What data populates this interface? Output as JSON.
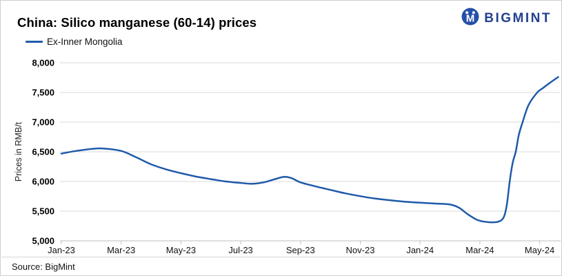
{
  "header": {
    "title": "China: Silico manganese (60-14) prices",
    "legend_label": "Ex-Inner Mongolia"
  },
  "logo": {
    "text": "BIGMINT",
    "icon": "bigmint-monkey-icon",
    "icon_color": "#2450A8",
    "text_color": "#24408E"
  },
  "footer": {
    "source": "Source: BigMint"
  },
  "colors": {
    "line": "#1F5AA9",
    "gridline": "#D9D9D9",
    "axis": "#BFBFBF",
    "background": "#FFFFFF"
  },
  "chart_data": {
    "type": "line",
    "title": "China: Silico manganese (60-14) prices",
    "xlabel": "",
    "ylabel": "Prices in RMB/t",
    "ylim": [
      5000,
      8000
    ],
    "y_tick_step": 500,
    "y_ticks": [
      8000,
      7500,
      7000,
      6500,
      6000,
      5500,
      5000
    ],
    "y_tick_labels": [
      "8,000",
      "7,500",
      "7,000",
      "6,500",
      "6,000",
      "5,500",
      "5,000"
    ],
    "x_unit": "months since Jan-2023",
    "x_ticks": [
      {
        "label": "Jan-23",
        "m": 0
      },
      {
        "label": "Mar-23",
        "m": 2
      },
      {
        "label": "May-23",
        "m": 4
      },
      {
        "label": "Jul-23",
        "m": 6
      },
      {
        "label": "Sep-23",
        "m": 8
      },
      {
        "label": "Nov-23",
        "m": 10
      },
      {
        "label": "Jan-24",
        "m": 12
      },
      {
        "label": "Mar-24",
        "m": 14
      },
      {
        "label": "May-24",
        "m": 16
      }
    ],
    "grid": "horizontal",
    "legend_position": "top-left",
    "series": [
      {
        "name": "Ex-Inner Mongolia",
        "color": "#1F5AA9",
        "points": [
          [
            0,
            6470
          ],
          [
            0.5,
            6515
          ],
          [
            1,
            6548
          ],
          [
            1.4,
            6556
          ],
          [
            2,
            6515
          ],
          [
            2.5,
            6408
          ],
          [
            3,
            6290
          ],
          [
            3.5,
            6205
          ],
          [
            4,
            6140
          ],
          [
            4.5,
            6083
          ],
          [
            5,
            6040
          ],
          [
            5.5,
            6000
          ],
          [
            6,
            5975
          ],
          [
            6.4,
            5962
          ],
          [
            6.8,
            5988
          ],
          [
            7.1,
            6032
          ],
          [
            7.45,
            6078
          ],
          [
            7.7,
            6056
          ],
          [
            8,
            5985
          ],
          [
            8.5,
            5918
          ],
          [
            9,
            5858
          ],
          [
            9.5,
            5800
          ],
          [
            10,
            5752
          ],
          [
            10.5,
            5712
          ],
          [
            11,
            5682
          ],
          [
            11.5,
            5658
          ],
          [
            12,
            5642
          ],
          [
            12.5,
            5628
          ],
          [
            13,
            5612
          ],
          [
            13.3,
            5558
          ],
          [
            13.6,
            5445
          ],
          [
            13.9,
            5355
          ],
          [
            14.15,
            5322
          ],
          [
            14.45,
            5312
          ],
          [
            14.65,
            5328
          ],
          [
            14.8,
            5400
          ],
          [
            14.9,
            5600
          ],
          [
            15.0,
            6010
          ],
          [
            15.1,
            6320
          ],
          [
            15.2,
            6500
          ],
          [
            15.3,
            6780
          ],
          [
            15.43,
            7000
          ],
          [
            15.63,
            7290
          ],
          [
            15.92,
            7500
          ],
          [
            16.1,
            7570
          ],
          [
            16.35,
            7665
          ],
          [
            16.62,
            7760
          ]
        ]
      }
    ]
  }
}
